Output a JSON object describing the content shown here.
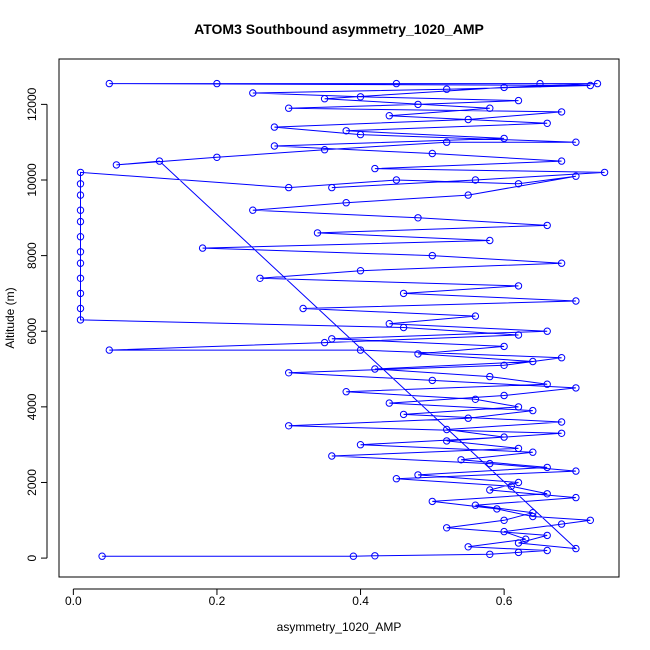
{
  "chart_data": {
    "type": "line",
    "title": "ATOM3 Southbound asymmetry_1020_AMP",
    "xlabel": "asymmetry_1020_AMP",
    "ylabel": "Altitude (m)",
    "xlim": [
      -0.02,
      0.76
    ],
    "ylim": [
      -500,
      13200
    ],
    "xticks": [
      0.0,
      0.2,
      0.4,
      0.6
    ],
    "xtick_labels": [
      "0.0",
      "0.2",
      "0.4",
      "0.6"
    ],
    "yticks": [
      0,
      2000,
      4000,
      6000,
      8000,
      10000,
      12000
    ],
    "ytick_labels": [
      "0",
      "2000",
      "4000",
      "6000",
      "8000",
      "10000",
      "12000"
    ],
    "grid": false,
    "legend": "none",
    "series": [
      {
        "color": "#0000ff",
        "marker": "open-circle",
        "line": true,
        "points": [
          [
            0.04,
            50
          ],
          [
            0.39,
            50
          ],
          [
            0.42,
            60
          ],
          [
            0.58,
            100
          ],
          [
            0.62,
            150
          ],
          [
            0.66,
            200
          ],
          [
            0.55,
            300
          ],
          [
            0.63,
            500
          ],
          [
            0.6,
            700
          ],
          [
            0.68,
            900
          ],
          [
            0.72,
            1000
          ],
          [
            0.64,
            1100
          ],
          [
            0.59,
            1300
          ],
          [
            0.5,
            1500
          ],
          [
            0.66,
            1700
          ],
          [
            0.61,
            1900
          ],
          [
            0.45,
            2100
          ],
          [
            0.7,
            2300
          ],
          [
            0.58,
            2500
          ],
          [
            0.36,
            2700
          ],
          [
            0.62,
            2900
          ],
          [
            0.52,
            3100
          ],
          [
            0.68,
            3300
          ],
          [
            0.3,
            3500
          ],
          [
            0.55,
            3700
          ],
          [
            0.64,
            3900
          ],
          [
            0.44,
            4100
          ],
          [
            0.6,
            4300
          ],
          [
            0.7,
            4500
          ],
          [
            0.5,
            4700
          ],
          [
            0.3,
            4900
          ],
          [
            0.6,
            5100
          ],
          [
            0.68,
            5300
          ],
          [
            0.4,
            5500
          ],
          [
            0.05,
            5500
          ],
          [
            0.35,
            5700
          ],
          [
            0.62,
            5900
          ],
          [
            0.46,
            6100
          ],
          [
            0.01,
            6300
          ],
          [
            0.01,
            6600
          ],
          [
            0.01,
            7000
          ],
          [
            0.01,
            7400
          ],
          [
            0.01,
            7800
          ],
          [
            0.01,
            8100
          ],
          [
            0.01,
            8500
          ],
          [
            0.01,
            8900
          ],
          [
            0.01,
            9200
          ],
          [
            0.01,
            9600
          ],
          [
            0.01,
            9900
          ],
          [
            0.01,
            10200
          ],
          [
            0.3,
            9800
          ],
          [
            0.45,
            10000
          ],
          [
            0.62,
            9900
          ],
          [
            0.7,
            10100
          ],
          [
            0.55,
            9600
          ],
          [
            0.38,
            9400
          ],
          [
            0.25,
            9200
          ],
          [
            0.48,
            9000
          ],
          [
            0.66,
            8800
          ],
          [
            0.34,
            8600
          ],
          [
            0.58,
            8400
          ],
          [
            0.18,
            8200
          ],
          [
            0.5,
            8000
          ],
          [
            0.68,
            7800
          ],
          [
            0.4,
            7600
          ],
          [
            0.26,
            7400
          ],
          [
            0.62,
            7200
          ],
          [
            0.46,
            7000
          ],
          [
            0.7,
            6800
          ],
          [
            0.32,
            6600
          ],
          [
            0.56,
            6400
          ],
          [
            0.44,
            6200
          ],
          [
            0.66,
            6000
          ],
          [
            0.36,
            5800
          ],
          [
            0.6,
            5600
          ],
          [
            0.48,
            5400
          ],
          [
            0.64,
            5200
          ],
          [
            0.42,
            5000
          ],
          [
            0.58,
            4800
          ],
          [
            0.66,
            4600
          ],
          [
            0.38,
            4400
          ],
          [
            0.56,
            4200
          ],
          [
            0.62,
            4000
          ],
          [
            0.46,
            3800
          ],
          [
            0.68,
            3600
          ],
          [
            0.52,
            3400
          ],
          [
            0.6,
            3200
          ],
          [
            0.4,
            3000
          ],
          [
            0.64,
            2800
          ],
          [
            0.54,
            2600
          ],
          [
            0.66,
            2400
          ],
          [
            0.48,
            2200
          ],
          [
            0.62,
            2000
          ],
          [
            0.58,
            1800
          ],
          [
            0.7,
            1600
          ],
          [
            0.56,
            1400
          ],
          [
            0.64,
            1200
          ],
          [
            0.6,
            1000
          ],
          [
            0.52,
            800
          ],
          [
            0.66,
            600
          ],
          [
            0.62,
            400
          ],
          [
            0.7,
            250
          ],
          [
            0.12,
            10500
          ],
          [
            0.06,
            10400
          ],
          [
            0.2,
            10600
          ],
          [
            0.35,
            10800
          ],
          [
            0.52,
            11000
          ],
          [
            0.7,
            11000
          ],
          [
            0.4,
            11200
          ],
          [
            0.28,
            11400
          ],
          [
            0.55,
            11600
          ],
          [
            0.68,
            11800
          ],
          [
            0.3,
            11900
          ],
          [
            0.48,
            12000
          ],
          [
            0.62,
            12100
          ],
          [
            0.4,
            12200
          ],
          [
            0.25,
            12300
          ],
          [
            0.52,
            12400
          ],
          [
            0.72,
            12500
          ],
          [
            0.05,
            12550
          ],
          [
            0.2,
            12550
          ],
          [
            0.45,
            12550
          ],
          [
            0.65,
            12550
          ],
          [
            0.73,
            12550
          ],
          [
            0.6,
            12450
          ],
          [
            0.35,
            12150
          ],
          [
            0.58,
            11900
          ],
          [
            0.44,
            11700
          ],
          [
            0.66,
            11500
          ],
          [
            0.38,
            11300
          ],
          [
            0.6,
            11100
          ],
          [
            0.28,
            10900
          ],
          [
            0.5,
            10700
          ],
          [
            0.68,
            10500
          ],
          [
            0.42,
            10300
          ],
          [
            0.74,
            10200
          ],
          [
            0.56,
            10000
          ],
          [
            0.36,
            9800
          ]
        ]
      }
    ]
  }
}
